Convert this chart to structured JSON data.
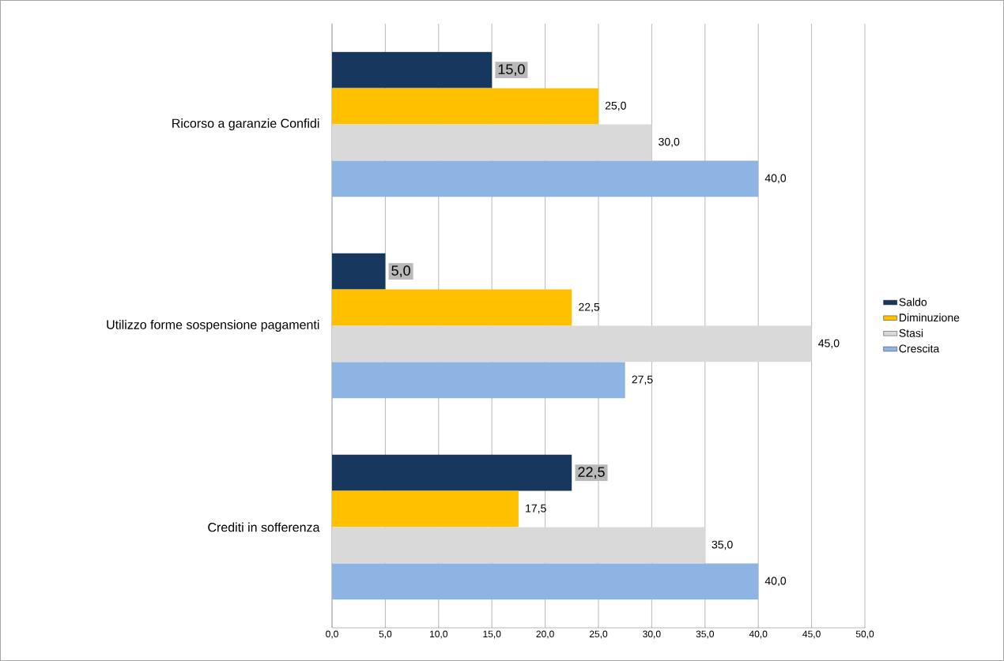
{
  "chart_data": {
    "type": "bar",
    "orientation": "horizontal",
    "categories": [
      "Ricorso a garanzie Confidi",
      "Utilizzo forme sospensione pagamenti",
      "Crediti in sofferenza"
    ],
    "series": [
      {
        "name": "Saldo",
        "color": "#17375e",
        "values": [
          15.0,
          5.0,
          22.5
        ],
        "value_labels": [
          "15,0",
          "5,0",
          "22,5"
        ]
      },
      {
        "name": "Diminuzione",
        "color": "#ffc000",
        "values": [
          25.0,
          22.5,
          17.5
        ],
        "value_labels": [
          "25,0",
          "22,5",
          "17,5"
        ]
      },
      {
        "name": "Stasi",
        "color": "#d9d9d9",
        "values": [
          30.0,
          45.0,
          35.0
        ],
        "value_labels": [
          "30,0",
          "45,0",
          "35,0"
        ]
      },
      {
        "name": "Crescita",
        "color": "#8eb4e3",
        "values": [
          40.0,
          27.5,
          40.0
        ],
        "value_labels": [
          "40,0",
          "27,5",
          "40,0"
        ]
      }
    ],
    "xlim": [
      0,
      50
    ],
    "xticks": [
      {
        "value": 0,
        "label": "0,0"
      },
      {
        "value": 5,
        "label": "5,0"
      },
      {
        "value": 10,
        "label": "10,0"
      },
      {
        "value": 15,
        "label": "15,0"
      },
      {
        "value": 20,
        "label": "20,0"
      },
      {
        "value": 25,
        "label": "25,0"
      },
      {
        "value": 30,
        "label": "30,0"
      },
      {
        "value": 35,
        "label": "35,0"
      },
      {
        "value": 40,
        "label": "40,0"
      },
      {
        "value": 45,
        "label": "45,0"
      },
      {
        "value": 50,
        "label": "50,0"
      }
    ],
    "grid": "x",
    "legend": "right"
  }
}
